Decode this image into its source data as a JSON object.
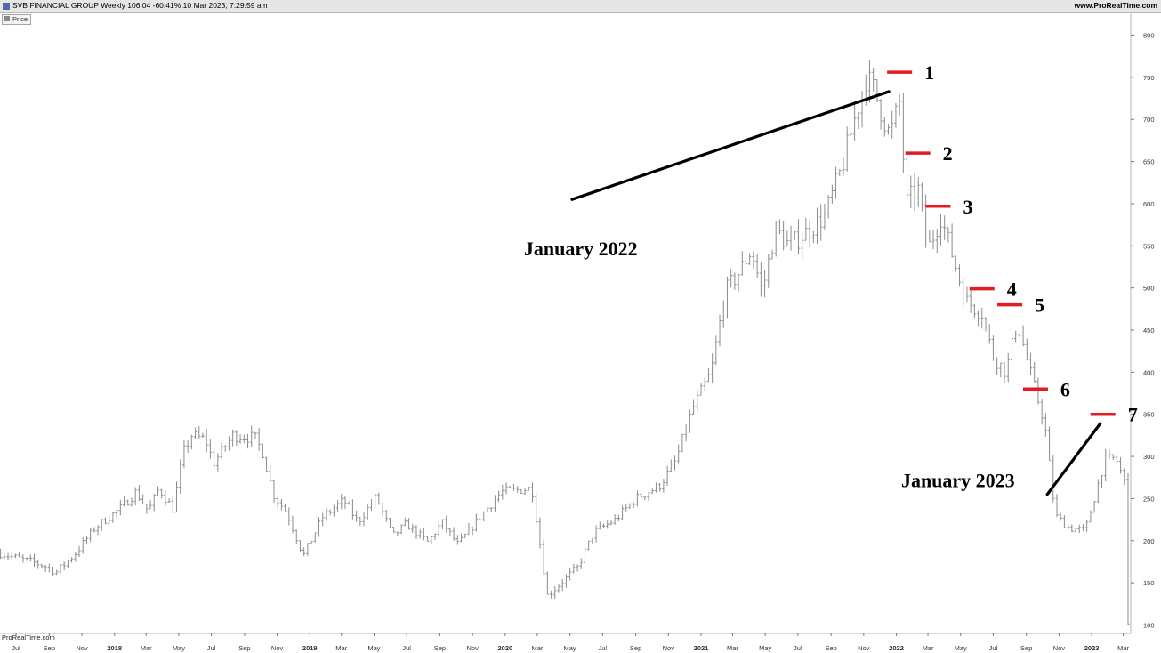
{
  "header": {
    "title": "SVB FINANCIAL GROUP Weekly 106.04 -60.41% 10 Mar 2023, 7:29:59 am",
    "site": "www.ProRealTime.com"
  },
  "legend": {
    "label": "Price"
  },
  "footer": {
    "source": "ProRealTime.com"
  },
  "colors": {
    "bars": "#8c8c8c",
    "marker": "#e31b23",
    "trendline": "#000000"
  },
  "chart_data": {
    "type": "bar",
    "ylim": [
      90,
      810
    ],
    "x_range": [
      "2017-06-01",
      "2023-03-15"
    ],
    "y_ticks": [
      100,
      150,
      200,
      250,
      300,
      350,
      400,
      450,
      500,
      550,
      600,
      650,
      700,
      750,
      800
    ],
    "x_ticks": [
      {
        "date": "2017-07-01",
        "label": "Jul",
        "bold": false
      },
      {
        "date": "2017-09-01",
        "label": "Sep",
        "bold": false
      },
      {
        "date": "2017-11-01",
        "label": "Nov",
        "bold": false
      },
      {
        "date": "2018-01-01",
        "label": "2018",
        "bold": true
      },
      {
        "date": "2018-03-01",
        "label": "Mar",
        "bold": false
      },
      {
        "date": "2018-05-01",
        "label": "May",
        "bold": false
      },
      {
        "date": "2018-07-01",
        "label": "Jul",
        "bold": false
      },
      {
        "date": "2018-09-01",
        "label": "Sep",
        "bold": false
      },
      {
        "date": "2018-11-01",
        "label": "Nov",
        "bold": false
      },
      {
        "date": "2019-01-01",
        "label": "2019",
        "bold": true
      },
      {
        "date": "2019-03-01",
        "label": "Mar",
        "bold": false
      },
      {
        "date": "2019-05-01",
        "label": "May",
        "bold": false
      },
      {
        "date": "2019-07-01",
        "label": "Jul",
        "bold": false
      },
      {
        "date": "2019-09-01",
        "label": "Sep",
        "bold": false
      },
      {
        "date": "2019-11-01",
        "label": "Nov",
        "bold": false
      },
      {
        "date": "2020-01-01",
        "label": "2020",
        "bold": true
      },
      {
        "date": "2020-03-01",
        "label": "Mar",
        "bold": false
      },
      {
        "date": "2020-05-01",
        "label": "May",
        "bold": false
      },
      {
        "date": "2020-07-01",
        "label": "Jul",
        "bold": false
      },
      {
        "date": "2020-09-01",
        "label": "Sep",
        "bold": false
      },
      {
        "date": "2020-11-01",
        "label": "Nov",
        "bold": false
      },
      {
        "date": "2021-01-01",
        "label": "2021",
        "bold": true
      },
      {
        "date": "2021-03-01",
        "label": "Mar",
        "bold": false
      },
      {
        "date": "2021-05-01",
        "label": "May",
        "bold": false
      },
      {
        "date": "2021-07-01",
        "label": "Jul",
        "bold": false
      },
      {
        "date": "2021-09-01",
        "label": "Sep",
        "bold": false
      },
      {
        "date": "2021-11-01",
        "label": "Nov",
        "bold": false
      },
      {
        "date": "2022-01-01",
        "label": "2022",
        "bold": true
      },
      {
        "date": "2022-03-01",
        "label": "Mar",
        "bold": false
      },
      {
        "date": "2022-05-01",
        "label": "May",
        "bold": false
      },
      {
        "date": "2022-07-01",
        "label": "Jul",
        "bold": false
      },
      {
        "date": "2022-09-01",
        "label": "Sep",
        "bold": false
      },
      {
        "date": "2022-11-01",
        "label": "Nov",
        "bold": false
      },
      {
        "date": "2023-01-01",
        "label": "2023",
        "bold": true
      },
      {
        "date": "2023-03-01",
        "label": "Mar",
        "bold": false
      }
    ],
    "price_path": [
      [
        "2017-06-02",
        185
      ],
      [
        "2017-08-15",
        172
      ],
      [
        "2017-09-15",
        163
      ],
      [
        "2017-10-20",
        185
      ],
      [
        "2017-11-25",
        215
      ],
      [
        "2018-01-15",
        240
      ],
      [
        "2018-02-10",
        258
      ],
      [
        "2018-03-05",
        235
      ],
      [
        "2018-03-25",
        262
      ],
      [
        "2018-04-20",
        238
      ],
      [
        "2018-05-10",
        305
      ],
      [
        "2018-05-25",
        325
      ],
      [
        "2018-06-20",
        320
      ],
      [
        "2018-07-05",
        292
      ],
      [
        "2018-08-10",
        325
      ],
      [
        "2018-09-20",
        322
      ],
      [
        "2018-10-05",
        305
      ],
      [
        "2018-10-25",
        255
      ],
      [
        "2018-11-20",
        232
      ],
      [
        "2018-12-20",
        182
      ],
      [
        "2019-01-25",
        228
      ],
      [
        "2019-03-05",
        248
      ],
      [
        "2019-04-01",
        222
      ],
      [
        "2019-05-05",
        252
      ],
      [
        "2019-06-05",
        205
      ],
      [
        "2019-06-30",
        220
      ],
      [
        "2019-08-10",
        198
      ],
      [
        "2019-09-05",
        222
      ],
      [
        "2019-10-05",
        195
      ],
      [
        "2019-11-20",
        232
      ],
      [
        "2019-12-25",
        258
      ],
      [
        "2020-02-20",
        262
      ],
      [
        "2020-03-20",
        135
      ],
      [
        "2020-05-15",
        168
      ],
      [
        "2020-06-15",
        210
      ],
      [
        "2020-07-25",
        225
      ],
      [
        "2020-09-01",
        250
      ],
      [
        "2020-10-15",
        265
      ],
      [
        "2020-11-15",
        295
      ],
      [
        "2020-12-15",
        355
      ],
      [
        "2021-01-20",
        400
      ],
      [
        "2021-02-15",
        495
      ],
      [
        "2021-03-15",
        520
      ],
      [
        "2021-04-05",
        545
      ],
      [
        "2021-04-25",
        495
      ],
      [
        "2021-05-20",
        570
      ],
      [
        "2021-06-15",
        550
      ],
      [
        "2021-07-15",
        565
      ],
      [
        "2021-08-20",
        585
      ],
      [
        "2021-09-20",
        640
      ],
      [
        "2021-10-15",
        700
      ],
      [
        "2021-11-05",
        750
      ],
      [
        "2021-11-20",
        735
      ],
      [
        "2021-12-20",
        680
      ],
      [
        "2022-01-07",
        720
      ],
      [
        "2022-01-20",
        600
      ],
      [
        "2022-02-10",
        620
      ],
      [
        "2022-03-01",
        545
      ],
      [
        "2022-03-25",
        585
      ],
      [
        "2022-04-20",
        530
      ],
      [
        "2022-05-10",
        485
      ],
      [
        "2022-06-10",
        470
      ],
      [
        "2022-06-30",
        420
      ],
      [
        "2022-07-25",
        400
      ],
      [
        "2022-08-15",
        460
      ],
      [
        "2022-09-10",
        395
      ],
      [
        "2022-10-05",
        340
      ],
      [
        "2022-10-25",
        230
      ],
      [
        "2022-11-20",
        215
      ],
      [
        "2022-12-20",
        212
      ],
      [
        "2023-01-25",
        295
      ],
      [
        "2023-02-15",
        298
      ],
      [
        "2023-03-03",
        270
      ],
      [
        "2023-03-10",
        106
      ]
    ],
    "markers": [
      {
        "label": "1",
        "date": "2022-01-07",
        "value": 756
      },
      {
        "label": "2",
        "date": "2022-02-10",
        "value": 660
      },
      {
        "label": "3",
        "date": "2022-03-20",
        "value": 597
      },
      {
        "label": "4",
        "date": "2022-06-10",
        "value": 499
      },
      {
        "label": "5",
        "date": "2022-08-01",
        "value": 480
      },
      {
        "label": "6",
        "date": "2022-09-18",
        "value": 380
      },
      {
        "label": "7",
        "date": "2023-01-22",
        "value": 350
      }
    ],
    "trendlines": [
      {
        "from": [
          "2020-05-05",
          605
        ],
        "to": [
          "2021-12-18",
          733
        ]
      },
      {
        "from": [
          "2022-10-10",
          255
        ],
        "to": [
          "2023-01-17",
          339
        ]
      }
    ],
    "annotations": [
      {
        "text": "January 2022",
        "date": "2020-02-05",
        "value": 547
      },
      {
        "text": "January 2023",
        "date": "2022-01-10",
        "value": 272
      }
    ]
  }
}
